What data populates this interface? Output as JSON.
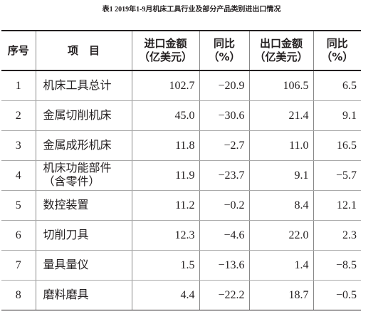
{
  "title": "表1 2019年1-9月机床工具行业及部分产品类别进出口情况",
  "table": {
    "header": [
      [
        "序号"
      ],
      [
        "项　目"
      ],
      [
        "进口金额",
        "（亿美元）"
      ],
      [
        "同比",
        "（%）"
      ],
      [
        "出口金额",
        "（亿美元）"
      ],
      [
        "同比",
        "（%）"
      ]
    ],
    "rows": [
      [
        "1",
        [
          "机床工具总计"
        ],
        "102.7",
        "−20.9",
        "106.5",
        "6.5"
      ],
      [
        "2",
        [
          "金属切削机床"
        ],
        "45.0",
        "−30.6",
        "21.4",
        "9.1"
      ],
      [
        "3",
        [
          "金属成形机床"
        ],
        "11.8",
        "−2.7",
        "11.0",
        "16.5"
      ],
      [
        "4",
        [
          "机床功能部件",
          "（含零件）"
        ],
        "11.9",
        "−23.7",
        "9.1",
        "−5.7"
      ],
      [
        "5",
        [
          "数控装置"
        ],
        "11.2",
        "−0.2",
        "8.4",
        "12.1"
      ],
      [
        "6",
        [
          "切削刀具"
        ],
        "12.3",
        "−4.6",
        "22.0",
        "2.3"
      ],
      [
        "7",
        [
          "量具量仪"
        ],
        "1.5",
        "−13.6",
        "1.4",
        "−8.5"
      ],
      [
        "8",
        [
          "磨料磨具"
        ],
        "4.4",
        "−22.2",
        "18.7",
        "−0.5"
      ]
    ]
  }
}
